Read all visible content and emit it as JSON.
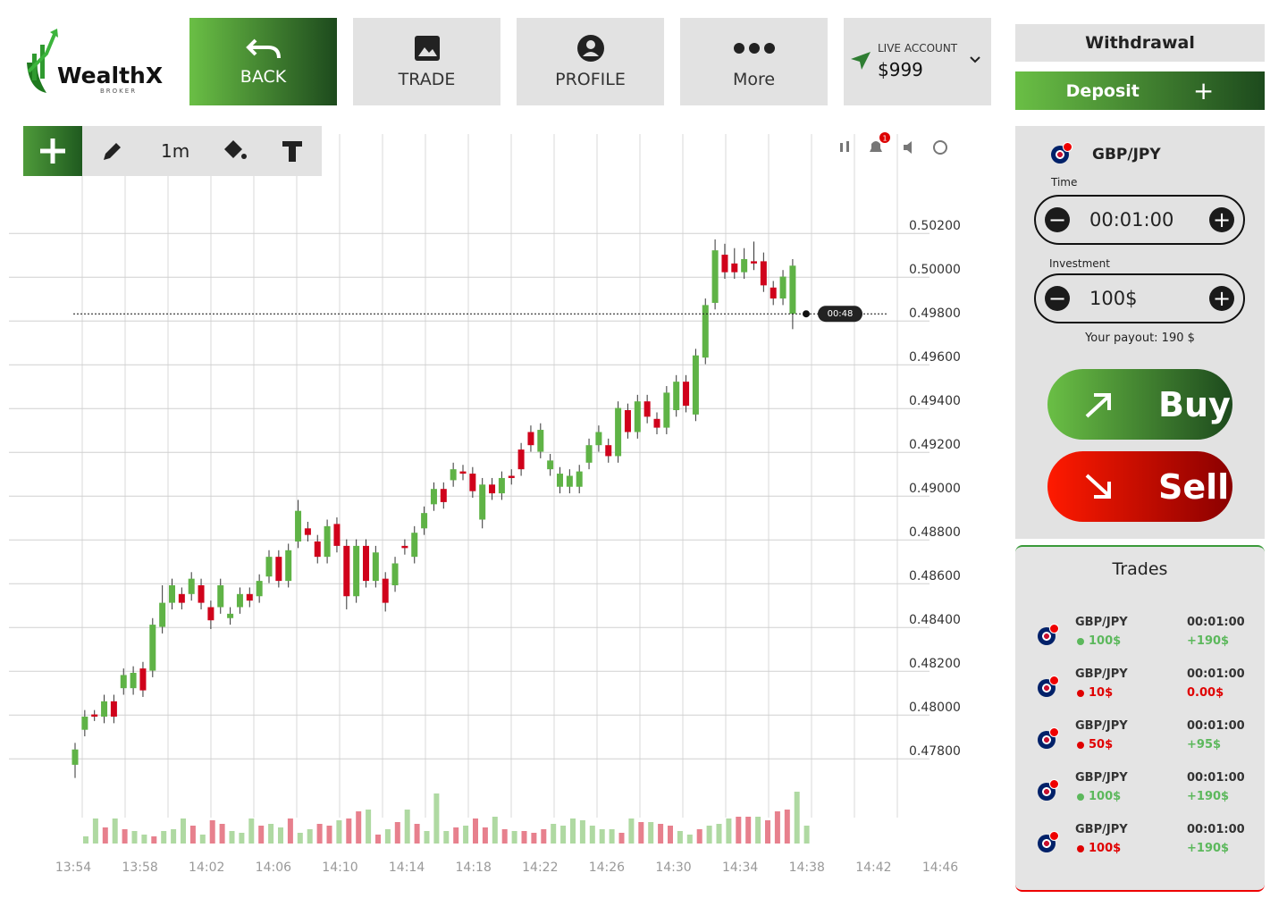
{
  "logo": {
    "name": "WealthX",
    "tagline": "BROKER"
  },
  "nav": {
    "back": "BACK",
    "trade": "TRADE",
    "profile": "PROFILE",
    "more": "More",
    "account_label": "LIVE ACCOUNT",
    "account_balance": "$999"
  },
  "toolbar": {
    "interval": "1m",
    "notifications": "1"
  },
  "side": {
    "withdrawal": "Withdrawal",
    "deposit": "Deposit",
    "pair": "GBP/JPY",
    "time_label": "Time",
    "time": "00:01:00",
    "investment_label": "Investment",
    "investment": "100$",
    "payout": "Your payout: 190 $",
    "buy": "Buy",
    "sell": "Sell"
  },
  "trades": {
    "title": "Trades",
    "rows": [
      {
        "pair": "GBP/JPY",
        "amount": "100$",
        "time": "00:01:00",
        "payout": "+190$",
        "color": "#5cb85c"
      },
      {
        "pair": "GBP/JPY",
        "amount": "10$",
        "time": "00:01:00",
        "payout": "0.00$",
        "color": "#e00000"
      },
      {
        "pair": "GBP/JPY",
        "amount": "50$",
        "time": "00:01:00",
        "payout": "+95$",
        "color": "#e00000",
        "payout_color": "#5cb85c"
      },
      {
        "pair": "GBP/JPY",
        "amount": "100$",
        "time": "00:01:00",
        "payout": "+190$",
        "color": "#5cb85c"
      },
      {
        "pair": "GBP/JPY",
        "amount": "100$",
        "time": "00:01:00",
        "payout": "+190$",
        "color": "#e00000",
        "payout_color": "#5cb85c"
      }
    ]
  },
  "chart_data": {
    "type": "candlestick",
    "up_color": "#5fb346",
    "down_color": "#d0021b",
    "ylim": [
      0.4756,
      0.5036
    ],
    "yticks": [
      {
        "value": 0.502,
        "label": "0.50200"
      },
      {
        "value": 0.5,
        "label": "0.50000"
      },
      {
        "value": 0.498,
        "label": "0.49800"
      },
      {
        "value": 0.496,
        "label": "0.49600"
      },
      {
        "value": 0.494,
        "label": "0.49400"
      },
      {
        "value": 0.492,
        "label": "0.49200"
      },
      {
        "value": 0.49,
        "label": "0.49000"
      },
      {
        "value": 0.488,
        "label": "0.48800"
      },
      {
        "value": 0.486,
        "label": "0.48600"
      },
      {
        "value": 0.484,
        "label": "0.48400"
      },
      {
        "value": 0.482,
        "label": "0.48200"
      },
      {
        "value": 0.48,
        "label": "0.48000"
      },
      {
        "value": 0.478,
        "label": "0.47800"
      }
    ],
    "xticks": [
      "13:54",
      "13:58",
      "14:02",
      "14:06",
      "14:10",
      "14:14",
      "14:18",
      "14:22",
      "14:26",
      "14:30",
      "14:34",
      "14:38",
      "14:42",
      "14:46"
    ],
    "current_price": 0.498,
    "timer": "00:48",
    "open": [
      0.4774,
      0.479,
      0.4797,
      0.4796,
      0.4803,
      0.4809,
      0.4809,
      0.4818,
      0.4817,
      0.4837,
      0.4848,
      0.4852,
      0.4852,
      0.4856,
      0.4846,
      0.4846,
      0.4841,
      0.4846,
      0.4852,
      0.4851,
      0.486,
      0.4869,
      0.4858,
      0.4876,
      0.4882,
      0.4876,
      0.4869,
      0.4884,
      0.4874,
      0.4851,
      0.4874,
      0.4858,
      0.4859,
      0.4856,
      0.4874,
      0.4869,
      0.4882,
      0.4893,
      0.49,
      0.4904,
      0.4908,
      0.4907,
      0.4886,
      0.4902,
      0.4898,
      0.4906,
      0.4918,
      0.4926,
      0.4917,
      0.4909,
      0.4901,
      0.4901,
      0.4901,
      0.4912,
      0.492,
      0.492,
      0.4915,
      0.4936,
      0.4926,
      0.494,
      0.4932,
      0.4928,
      0.4936,
      0.4949,
      0.4934,
      0.496,
      0.4985,
      0.5007,
      0.5003,
      0.4999,
      0.5004,
      0.5004,
      0.4992,
      0.4987,
      0.498
    ],
    "high": [
      0.4784,
      0.4799,
      0.4799,
      0.4806,
      0.4806,
      0.4818,
      0.4819,
      0.4821,
      0.4841,
      0.4856,
      0.4859,
      0.4855,
      0.4862,
      0.4859,
      0.4849,
      0.4859,
      0.4846,
      0.4855,
      0.4855,
      0.4861,
      0.4872,
      0.4872,
      0.4875,
      0.4895,
      0.4885,
      0.4879,
      0.4886,
      0.4887,
      0.4877,
      0.4877,
      0.4877,
      0.4874,
      0.4862,
      0.4869,
      0.4877,
      0.4883,
      0.4892,
      0.4903,
      0.4903,
      0.4912,
      0.4911,
      0.491,
      0.4905,
      0.4905,
      0.4908,
      0.4909,
      0.4921,
      0.4929,
      0.493,
      0.4916,
      0.491,
      0.4909,
      0.4911,
      0.4923,
      0.4929,
      0.4923,
      0.494,
      0.4939,
      0.4943,
      0.4943,
      0.4935,
      0.4947,
      0.4952,
      0.4952,
      0.4964,
      0.4987,
      0.5014,
      0.5012,
      0.501,
      0.501,
      0.5013,
      0.5008,
      0.4995,
      0.5,
      0.5005
    ],
    "low": [
      0.4768,
      0.4787,
      0.4794,
      0.4793,
      0.4793,
      0.4806,
      0.4806,
      0.4805,
      0.4814,
      0.4834,
      0.4845,
      0.4845,
      0.4849,
      0.4845,
      0.4836,
      0.4843,
      0.4838,
      0.4843,
      0.4846,
      0.4848,
      0.4857,
      0.4855,
      0.4855,
      0.4873,
      0.4876,
      0.4866,
      0.4866,
      0.4871,
      0.4845,
      0.4848,
      0.4855,
      0.4855,
      0.4844,
      0.4853,
      0.487,
      0.4866,
      0.4879,
      0.489,
      0.4891,
      0.4901,
      0.4904,
      0.4896,
      0.4882,
      0.4895,
      0.4895,
      0.4902,
      0.4906,
      0.4917,
      0.4914,
      0.4906,
      0.4898,
      0.4898,
      0.4898,
      0.4909,
      0.4917,
      0.4912,
      0.4912,
      0.4923,
      0.4923,
      0.493,
      0.4925,
      0.4925,
      0.4933,
      0.4935,
      0.4931,
      0.4957,
      0.4982,
      0.4996,
      0.4996,
      0.4996,
      0.5,
      0.499,
      0.4984,
      0.4984,
      0.4973
    ],
    "close": [
      0.4781,
      0.4796,
      0.4796,
      0.4803,
      0.4796,
      0.4815,
      0.4816,
      0.4808,
      0.4838,
      0.4848,
      0.4856,
      0.4848,
      0.4859,
      0.4848,
      0.484,
      0.4856,
      0.4843,
      0.4852,
      0.4849,
      0.4858,
      0.4869,
      0.4858,
      0.4872,
      0.489,
      0.4879,
      0.4869,
      0.4883,
      0.4874,
      0.4851,
      0.4874,
      0.4858,
      0.4871,
      0.4848,
      0.4866,
      0.4873,
      0.488,
      0.4889,
      0.49,
      0.4894,
      0.4909,
      0.4907,
      0.4899,
      0.4902,
      0.4898,
      0.4905,
      0.4905,
      0.4909,
      0.492,
      0.4927,
      0.4913,
      0.4907,
      0.4906,
      0.4908,
      0.492,
      0.4926,
      0.4915,
      0.4937,
      0.4926,
      0.494,
      0.4933,
      0.4928,
      0.4944,
      0.4949,
      0.4938,
      0.4961,
      0.4984,
      0.5009,
      0.4999,
      0.4999,
      0.5005,
      0.5003,
      0.4993,
      0.4987,
      0.4997,
      0.5002
    ],
    "volume": [
      8,
      28,
      18,
      28,
      16,
      14,
      10,
      8,
      14,
      16,
      28,
      20,
      10,
      26,
      22,
      14,
      12,
      28,
      20,
      22,
      18,
      28,
      12,
      16,
      22,
      20,
      26,
      28,
      36,
      38,
      10,
      16,
      24,
      38,
      22,
      14,
      56,
      14,
      18,
      20,
      28,
      18,
      30,
      16,
      14,
      14,
      12,
      16,
      22,
      20,
      28,
      26,
      20,
      16,
      16,
      12,
      28,
      24,
      24,
      22,
      20,
      14,
      10,
      16,
      20,
      22,
      28,
      30,
      30,
      30,
      26,
      36,
      38,
      58,
      20
    ]
  }
}
